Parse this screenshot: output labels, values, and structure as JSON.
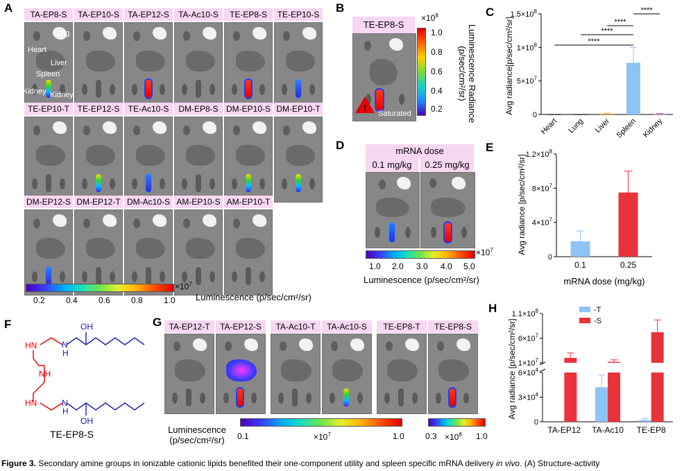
{
  "panels": {
    "a": "A",
    "b": "B",
    "c": "C",
    "d": "D",
    "e": "E",
    "f": "F",
    "g": "G",
    "h": "H"
  },
  "panel_a": {
    "row1": [
      "TA-EP8-S",
      "TA-EP10-S",
      "TA-EP12-S",
      "TA-Ac10-S",
      "TE-EP8-S",
      "TE-EP10-S"
    ],
    "row2": [
      "TE-EP10-T",
      "TE-EP12-S",
      "TE-Ac10-S",
      "DM-EP8-S",
      "DM-EP10-S",
      "DM-EP10-T"
    ],
    "row3": [
      "DM-EP12-S",
      "DM-EP12-T",
      "DM-Ac10-S",
      "AM-EP10-S",
      "AM-EP10-T"
    ],
    "organ_labels": {
      "lung": "Lung",
      "heart": "Heart",
      "liver": "Liver",
      "spleen": "Spleen",
      "kidney1": "Kidney",
      "kidney2": "Kidney"
    },
    "colorbar": {
      "ticks": [
        "0.2",
        "0.4",
        "0.6",
        "0.8",
        "1.0"
      ],
      "multiplier": "×10",
      "exp": "7",
      "label": "Luminescence (p/sec/cm²/sr)"
    }
  },
  "panel_b": {
    "label": "TE-EP8-S",
    "saturated": "Saturated",
    "multiplier": "×10",
    "exp": "8",
    "ticks": [
      "1.0",
      "0.8",
      "0.6",
      "0.4",
      "0.2"
    ],
    "axis_label": "Luminescence Radiance (p/sec/cm²/sr)"
  },
  "panel_d": {
    "header": "mRNA dose",
    "doses": [
      "0.1 mg/kg",
      "0.25 mg/kg"
    ],
    "ticks": [
      "1.0",
      "2.0",
      "3.0",
      "4.0",
      "5.0"
    ],
    "multiplier": "×10",
    "exp": "7",
    "label": "Luminescence  (p/sec/cm²/sr)"
  },
  "panel_f": {
    "title": "TE-EP8-S",
    "atoms": [
      "OH",
      "HN",
      "N",
      "H",
      "NH",
      "HN",
      "N",
      "H",
      "OH"
    ]
  },
  "panel_g": {
    "labels": [
      "TA-EP12-T",
      "TA-EP12-S",
      "TA-Ac10-T",
      "TA-Ac10-S",
      "TE-EP8-T",
      "TE-EP8-S"
    ],
    "colorbar_label": "Luminescence (p/sec/cm²/sr)",
    "bar1": {
      "min": "0.1",
      "max": "1.0",
      "multiplier": "×10",
      "exp": "7"
    },
    "bar2": {
      "min": "0.3",
      "max": "1.0",
      "multiplier": "×10",
      "exp": "8"
    }
  },
  "caption": {
    "bold": "Figure 3.",
    "text": " Secondary amine groups in ionizable cationic lipids benefited their one-component utility and spleen specific mRNA delivery ",
    "italic": "in vivo",
    "tail": ". (A) Structure-activity"
  },
  "colors": {
    "blue": "#8ec3f5",
    "red": "#e8333b",
    "orange": "#f4a630",
    "purple": "#b866b8",
    "pink_label": "#f7d7f2"
  },
  "chart_data": [
    {
      "id": "C",
      "type": "bar",
      "categories": [
        "Heart",
        "Lung",
        "Liver",
        "Spleen",
        "Kidney"
      ],
      "values": [
        0,
        0,
        1000000,
        77000000,
        800000
      ],
      "errors": [
        0,
        0,
        800000,
        23000000,
        600000
      ],
      "colors": [
        "#444444",
        "#444444",
        "#f4a630",
        "#8ec3f5",
        "#b866b8"
      ],
      "ylabel": "Avg radiance[p/sec/cm²/sr]",
      "ylim": [
        0,
        150000000
      ],
      "yticks": [
        {
          "v": 0,
          "t": "0"
        },
        {
          "v": 50000000,
          "t": "5×10",
          "e": "7"
        },
        {
          "v": 100000000,
          "t": "1×10",
          "e": "8"
        },
        {
          "v": 150000000,
          "t": "1.5×10",
          "e": "8"
        }
      ],
      "significance": [
        {
          "from": 0,
          "to": 3,
          "label": "****"
        },
        {
          "from": 1,
          "to": 3,
          "label": "****"
        },
        {
          "from": 2,
          "to": 3,
          "label": "****"
        },
        {
          "from": 3,
          "to": 4,
          "label": "****"
        }
      ]
    },
    {
      "id": "E",
      "type": "bar",
      "categories": [
        "0.1",
        "0.25"
      ],
      "values": [
        18000000,
        75000000
      ],
      "errors": [
        12000000,
        25000000
      ],
      "colors": [
        "#8ec3f5",
        "#e8333b"
      ],
      "xlabel": "mRNA dose (mg/kg)",
      "ylabel": "Avg radiance [p/sec/cm²/sr]",
      "ylim": [
        0,
        120000000
      ],
      "yticks": [
        {
          "v": 0,
          "t": "0"
        },
        {
          "v": 40000000,
          "t": "4×10",
          "e": "7"
        },
        {
          "v": 80000000,
          "t": "8×10",
          "e": "7"
        },
        {
          "v": 120000000,
          "t": "1.2×10",
          "e": "8"
        }
      ]
    },
    {
      "id": "H",
      "type": "bar",
      "categories": [
        "TA-EP12",
        "TA-Ac10",
        "TE-EP8"
      ],
      "series": [
        {
          "name": "-T",
          "color": "#8ec3f5",
          "values": [
            0,
            42000,
            2000
          ],
          "errors": [
            0,
            15000,
            2000
          ]
        },
        {
          "name": "-S",
          "color": "#e8333b",
          "values": [
            20000000,
            12000000,
            72000000
          ],
          "errors": [
            10000000,
            4000000,
            25000000
          ]
        }
      ],
      "ylabel": "Avg radiance [p/sec/cm²/sr]",
      "yticks": [
        {
          "t": "0"
        },
        {
          "t": "3×10",
          "e": "4"
        },
        {
          "t": "6×10",
          "e": "4"
        },
        {
          "t": "1×10",
          "e": "7"
        },
        {
          "t": "6×10",
          "e": "7"
        },
        {
          "t": "1.1×10",
          "e": "8"
        }
      ],
      "axis_break": true
    }
  ]
}
